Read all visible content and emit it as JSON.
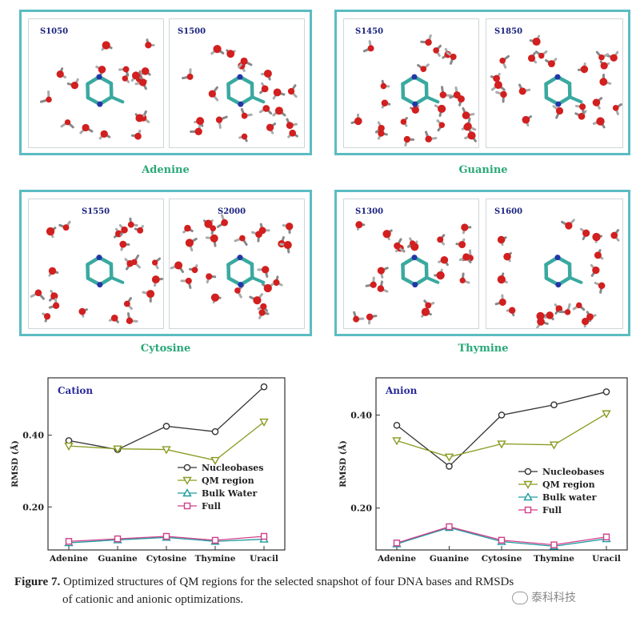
{
  "panels": [
    {
      "base": "Adenine",
      "left_label": "S1050",
      "right_label": "S1500"
    },
    {
      "base": "Guanine",
      "left_label": "S1450",
      "right_label": "S1850"
    },
    {
      "base": "Cytosine",
      "left_label": "S1550",
      "right_label": "S2000"
    },
    {
      "base": "Thymine",
      "left_label": "S1300",
      "right_label": "S1600"
    }
  ],
  "chart_data": [
    {
      "type": "line",
      "title": "Cation",
      "ylabel": "RMSD (Å)",
      "categories": [
        "Adenine",
        "Guanine",
        "Cytosine",
        "Thymine",
        "Uracil"
      ],
      "ylim": [
        0.08,
        0.56
      ],
      "yticks": [
        "0.20",
        "0.40"
      ],
      "series": [
        {
          "name": "Nucleobases",
          "color": "#333333",
          "marker": "circle",
          "values": [
            0.385,
            0.36,
            0.425,
            0.41,
            0.535
          ]
        },
        {
          "name": "QM region",
          "color": "#8a9a20",
          "marker": "triangle-down",
          "values": [
            0.37,
            0.362,
            0.36,
            0.33,
            0.437
          ]
        },
        {
          "name": "Bulk Water",
          "color": "#1f9aa0",
          "marker": "triangle-up",
          "values": [
            0.1,
            0.108,
            0.115,
            0.104,
            0.11
          ]
        },
        {
          "name": "Full",
          "color": "#d0408a",
          "marker": "square",
          "values": [
            0.104,
            0.111,
            0.118,
            0.107,
            0.118
          ]
        }
      ]
    },
    {
      "type": "line",
      "title": "Anion",
      "ylabel": "RMSD (Å)",
      "categories": [
        "Adenine",
        "Guanine",
        "Cytosine",
        "Thymine",
        "Uracil"
      ],
      "ylim": [
        0.11,
        0.48
      ],
      "yticks": [
        "0.20",
        "0.40"
      ],
      "series": [
        {
          "name": "Nucleobases",
          "color": "#333333",
          "marker": "circle",
          "values": [
            0.378,
            0.29,
            0.4,
            0.422,
            0.45
          ]
        },
        {
          "name": "QM region",
          "color": "#8a9a20",
          "marker": "triangle-down",
          "values": [
            0.345,
            0.31,
            0.338,
            0.336,
            0.403
          ]
        },
        {
          "name": "Bulk water",
          "color": "#1f9aa0",
          "marker": "triangle-up",
          "values": [
            0.123,
            0.158,
            0.128,
            0.118,
            0.134
          ]
        },
        {
          "name": "Full",
          "color": "#d0408a",
          "marker": "square",
          "values": [
            0.125,
            0.16,
            0.131,
            0.121,
            0.138
          ]
        }
      ]
    }
  ],
  "caption": {
    "figure_label": "Figure 7.",
    "line1": "Optimized structures of QM regions for the selected snapshot of four DNA bases and RMSDs",
    "line2": "of cationic and anionic optimizations."
  },
  "watermark": "泰科科技"
}
